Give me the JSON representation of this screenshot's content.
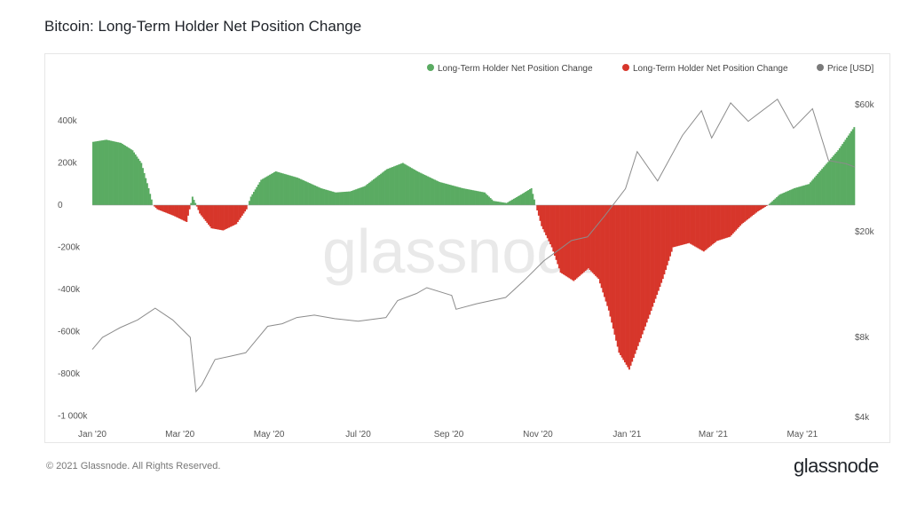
{
  "title": "Bitcoin: Long-Term Holder Net Position Change",
  "footer": {
    "copyright": "© 2021 Glassnode. All Rights Reserved.",
    "brand": "glassnode"
  },
  "watermark": "glassnode",
  "colors": {
    "positive": "#5aab62",
    "negative": "#d7362b",
    "price": "#8c8c8c"
  },
  "chart_data": {
    "type": "area",
    "title": "Bitcoin: Long-Term Holder Net Position Change",
    "legend": {
      "placement": "top-right",
      "items": [
        {
          "label": "Long-Term Holder Net Position Change",
          "color": "#5aab62"
        },
        {
          "label": "Long-Term Holder Net Position Change",
          "color": "#d7362b"
        },
        {
          "label": "Price [USD]",
          "color": "#8c8c8c"
        }
      ]
    },
    "x_ticks": [
      "Jan '20",
      "Mar '20",
      "May '20",
      "Jul '20",
      "Sep '20",
      "Nov '20",
      "Jan '21",
      "Mar '21",
      "May '21"
    ],
    "y_left": {
      "ticks": [
        "400k",
        "200k",
        "0",
        "-200k",
        "-400k",
        "-600k",
        "-800k",
        "-1 000k"
      ],
      "range": [
        -1000000,
        450000
      ]
    },
    "y_right": {
      "ticks": [
        "$60k",
        "$20k",
        "$8k",
        "$4k"
      ],
      "scale": "log",
      "range": [
        4000,
        60000
      ]
    },
    "x_range": [
      "2020-01-01",
      "2021-06-06"
    ],
    "series": [
      {
        "name": "Long-Term Holder Net Position Change",
        "unit": "BTC",
        "points": [
          [
            "2020-01-01",
            300000
          ],
          [
            "2020-01-10",
            310000
          ],
          [
            "2020-01-20",
            295000
          ],
          [
            "2020-01-28",
            260000
          ],
          [
            "2020-02-03",
            200000
          ],
          [
            "2020-02-08",
            80000
          ],
          [
            "2020-02-11",
            0
          ],
          [
            "2020-02-14",
            -20000
          ],
          [
            "2020-02-25",
            -50000
          ],
          [
            "2020-03-05",
            -80000
          ],
          [
            "2020-03-09",
            40000
          ],
          [
            "2020-03-11",
            10000
          ],
          [
            "2020-03-14",
            -40000
          ],
          [
            "2020-03-22",
            -110000
          ],
          [
            "2020-03-30",
            -120000
          ],
          [
            "2020-04-08",
            -90000
          ],
          [
            "2020-04-15",
            -20000
          ],
          [
            "2020-04-18",
            40000
          ],
          [
            "2020-04-25",
            120000
          ],
          [
            "2020-05-05",
            160000
          ],
          [
            "2020-05-20",
            130000
          ],
          [
            "2020-06-05",
            80000
          ],
          [
            "2020-06-15",
            60000
          ],
          [
            "2020-06-25",
            65000
          ],
          [
            "2020-07-05",
            90000
          ],
          [
            "2020-07-20",
            170000
          ],
          [
            "2020-07-31",
            200000
          ],
          [
            "2020-08-10",
            160000
          ],
          [
            "2020-08-25",
            110000
          ],
          [
            "2020-09-10",
            80000
          ],
          [
            "2020-09-25",
            60000
          ],
          [
            "2020-10-01",
            20000
          ],
          [
            "2020-10-10",
            10000
          ],
          [
            "2020-10-20",
            50000
          ],
          [
            "2020-10-27",
            80000
          ],
          [
            "2020-10-30",
            0
          ],
          [
            "2020-11-03",
            -100000
          ],
          [
            "2020-11-10",
            -200000
          ],
          [
            "2020-11-16",
            -320000
          ],
          [
            "2020-11-25",
            -360000
          ],
          [
            "2020-12-05",
            -300000
          ],
          [
            "2020-12-12",
            -350000
          ],
          [
            "2020-12-19",
            -500000
          ],
          [
            "2020-12-26",
            -700000
          ],
          [
            "2021-01-02",
            -780000
          ],
          [
            "2021-01-09",
            -650000
          ],
          [
            "2021-01-16",
            -520000
          ],
          [
            "2021-01-25",
            -350000
          ],
          [
            "2021-02-01",
            -200000
          ],
          [
            "2021-02-12",
            -180000
          ],
          [
            "2021-02-22",
            -220000
          ],
          [
            "2021-03-03",
            -170000
          ],
          [
            "2021-03-12",
            -150000
          ],
          [
            "2021-03-20",
            -90000
          ],
          [
            "2021-03-31",
            -30000
          ],
          [
            "2021-04-07",
            0
          ],
          [
            "2021-04-15",
            50000
          ],
          [
            "2021-04-25",
            80000
          ],
          [
            "2021-05-05",
            100000
          ],
          [
            "2021-05-15",
            180000
          ],
          [
            "2021-05-25",
            260000
          ],
          [
            "2021-06-05",
            370000
          ]
        ]
      },
      {
        "name": "Price [USD]",
        "unit": "USD",
        "points": [
          [
            "2020-01-01",
            7200
          ],
          [
            "2020-01-08",
            8000
          ],
          [
            "2020-01-20",
            8700
          ],
          [
            "2020-02-01",
            9300
          ],
          [
            "2020-02-13",
            10300
          ],
          [
            "2020-02-25",
            9300
          ],
          [
            "2020-03-08",
            8000
          ],
          [
            "2020-03-12",
            5000
          ],
          [
            "2020-03-16",
            5300
          ],
          [
            "2020-03-25",
            6600
          ],
          [
            "2020-04-05",
            6800
          ],
          [
            "2020-04-15",
            7000
          ],
          [
            "2020-04-30",
            8800
          ],
          [
            "2020-05-10",
            9000
          ],
          [
            "2020-05-20",
            9500
          ],
          [
            "2020-06-01",
            9700
          ],
          [
            "2020-06-15",
            9400
          ],
          [
            "2020-07-01",
            9200
          ],
          [
            "2020-07-20",
            9500
          ],
          [
            "2020-07-28",
            11000
          ],
          [
            "2020-08-10",
            11700
          ],
          [
            "2020-08-17",
            12300
          ],
          [
            "2020-09-03",
            11500
          ],
          [
            "2020-09-06",
            10200
          ],
          [
            "2020-09-20",
            10700
          ],
          [
            "2020-10-10",
            11300
          ],
          [
            "2020-10-22",
            13000
          ],
          [
            "2020-11-05",
            15500
          ],
          [
            "2020-11-24",
            18500
          ],
          [
            "2020-12-05",
            19100
          ],
          [
            "2020-12-17",
            23000
          ],
          [
            "2020-12-31",
            29000
          ],
          [
            "2021-01-08",
            40000
          ],
          [
            "2021-01-22",
            31000
          ],
          [
            "2021-02-08",
            46000
          ],
          [
            "2021-02-21",
            57000
          ],
          [
            "2021-02-28",
            45000
          ],
          [
            "2021-03-13",
            61000
          ],
          [
            "2021-03-25",
            52000
          ],
          [
            "2021-04-14",
            63000
          ],
          [
            "2021-04-25",
            49000
          ],
          [
            "2021-05-08",
            58000
          ],
          [
            "2021-05-19",
            37000
          ],
          [
            "2021-05-31",
            36000
          ],
          [
            "2021-06-06",
            35000
          ]
        ]
      }
    ]
  }
}
